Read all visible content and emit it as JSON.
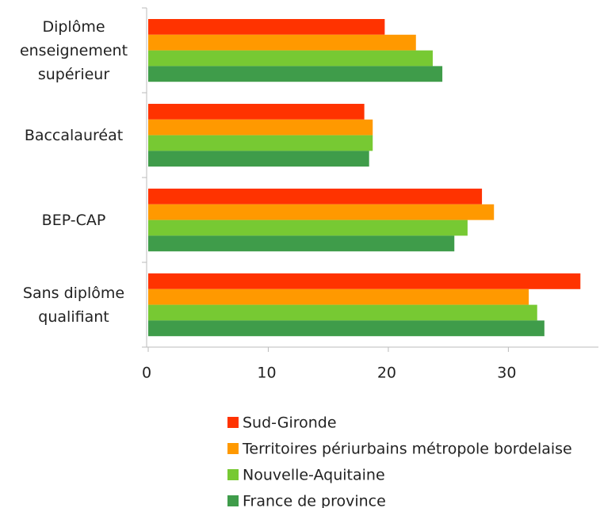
{
  "chart_data": {
    "type": "hbar",
    "categories": [
      "Diplôme enseignement supérieur",
      "Baccalauréat",
      "BEP-CAP",
      "Sans diplôme qualifiant"
    ],
    "series": [
      {
        "name": "Sud-Gironde",
        "color": "#ff3300",
        "values": [
          19.7,
          18.0,
          27.8,
          36.0
        ]
      },
      {
        "name": "Territoires périurbains métropole bordelaise",
        "color": "#ff9900",
        "values": [
          22.3,
          18.7,
          28.8,
          31.7
        ]
      },
      {
        "name": "Nouvelle-Aquitaine",
        "color": "#77c933",
        "values": [
          23.7,
          18.7,
          26.6,
          32.4
        ]
      },
      {
        "name": "France de province",
        "color": "#3f9c4a",
        "values": [
          24.5,
          18.4,
          25.5,
          33.0
        ]
      }
    ],
    "xlim": [
      0,
      37.5
    ],
    "xticks": [
      0,
      10,
      20,
      30
    ],
    "grid": false
  }
}
